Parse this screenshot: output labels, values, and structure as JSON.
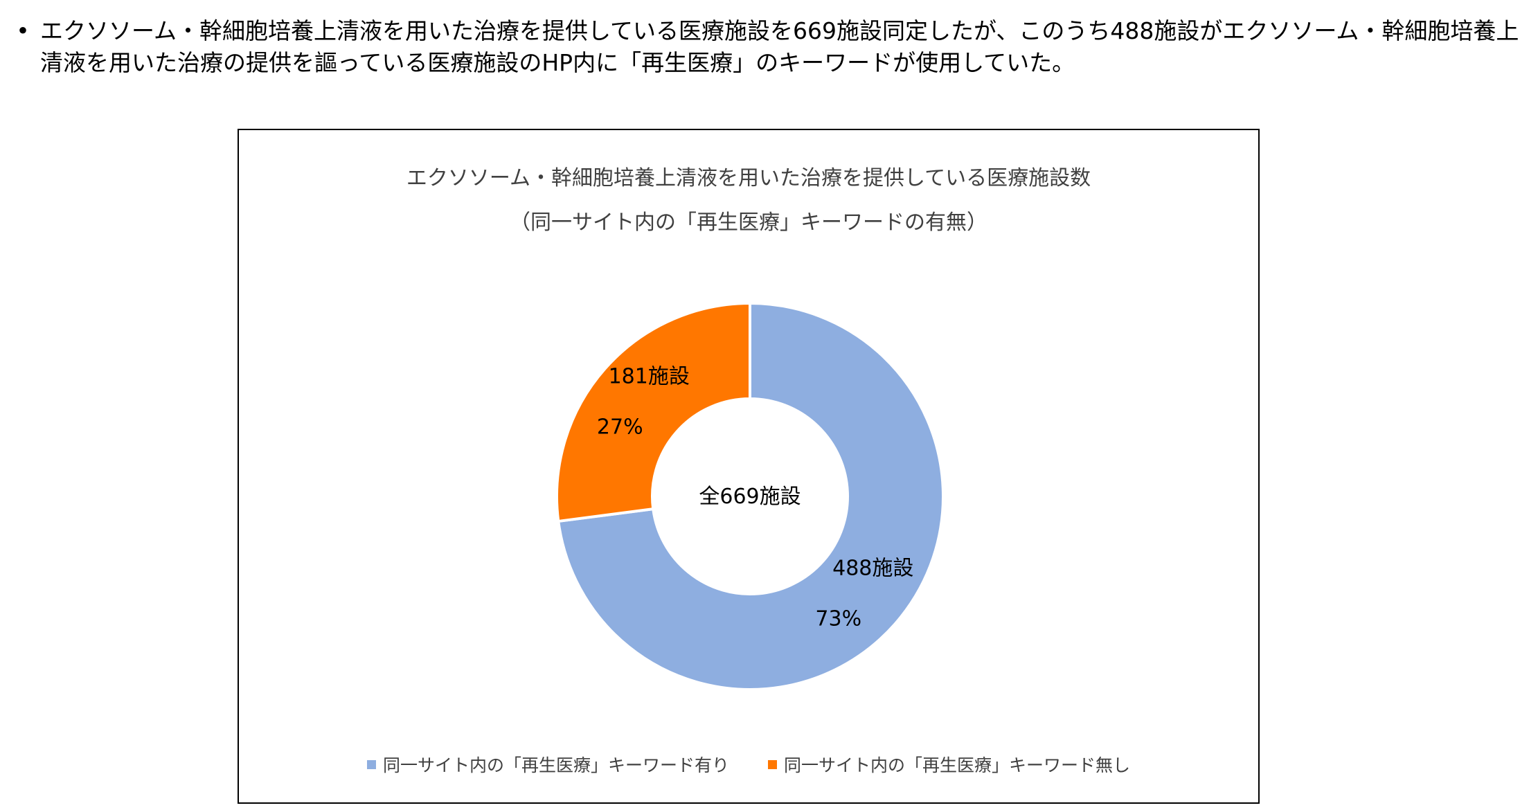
{
  "bullet": {
    "symbol": "•",
    "text": "エクソソーム・幹細胞培養上清液を用いた治療を提供している医療施設を669施設同定したが、このうち488施設がエクソソーム・幹細胞培養上清液を用いた治療の提供を謳っている医療施設のHP内に「再生医療」のキーワードが使用していた。"
  },
  "chart_data": {
    "type": "pie",
    "variant": "donut",
    "title": "エクソソーム・幹細胞培養上清液を用いた治療を提供している医療施設数",
    "subtitle": "（同一サイト内の「再生医療」キーワードの有無）",
    "center_label": "全669施設",
    "total": 669,
    "slices": [
      {
        "name": "同一サイト内の「再生医療」キーワード有り",
        "value": 488,
        "count_label": "488施設",
        "percent_label": "73%",
        "color": "#8EAEE0"
      },
      {
        "name": "同一サイト内の「再生医療」キーワード無し",
        "value": 181,
        "count_label": "181施設",
        "percent_label": "27%",
        "color": "#FF7700"
      }
    ],
    "legend_position": "bottom"
  }
}
